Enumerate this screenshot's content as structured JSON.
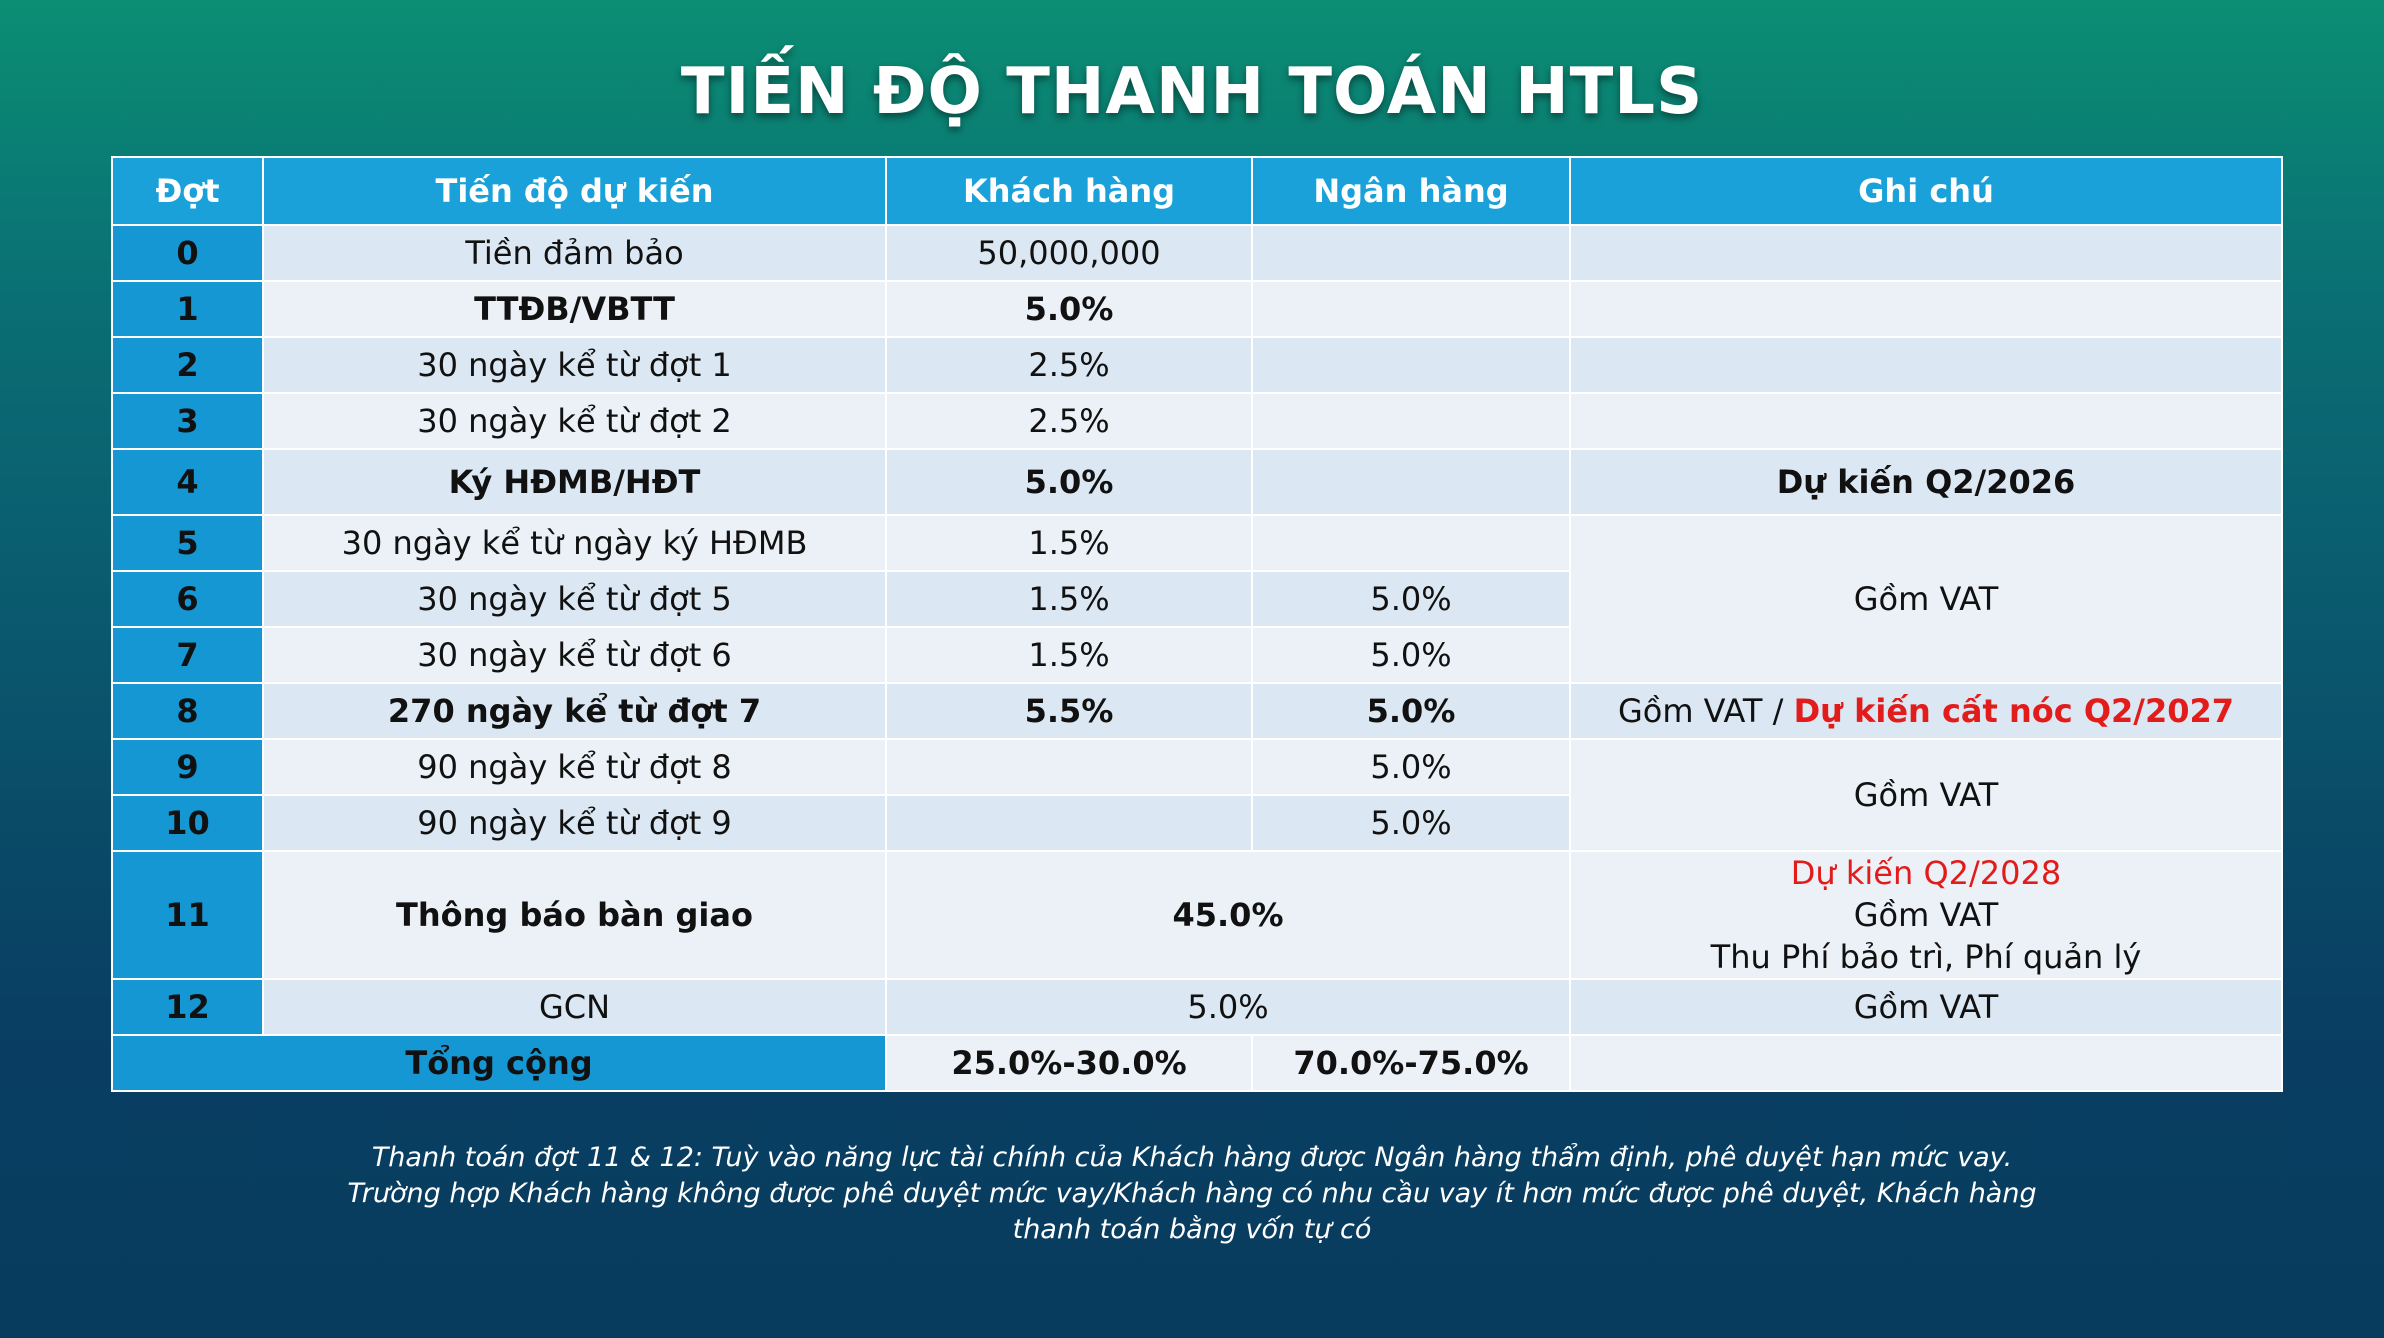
{
  "title": "TIẾN ĐỘ THANH TOÁN HTLS",
  "headers": {
    "dot": "Đợt",
    "tien_do": "Tiến độ dự kiến",
    "khach_hang": "Khách hàng",
    "ngan_hang": "Ngân hàng",
    "ghi_chu": "Ghi chú"
  },
  "rows": [
    {
      "dot": "0",
      "tien_do": "Tiền đảm bảo",
      "kh": "50,000,000"
    },
    {
      "dot": "1",
      "tien_do": "TTĐB/VBTT",
      "kh": "5.0%"
    },
    {
      "dot": "2",
      "tien_do": "30 ngày kể từ đợt 1",
      "kh": "2.5%"
    },
    {
      "dot": "3",
      "tien_do": "30 ngày kể từ đợt 2",
      "kh": "2.5%"
    },
    {
      "dot": "4",
      "tien_do": "Ký HĐMB/HĐT",
      "kh": "5.0%",
      "gc": "Dự kiến Q2/2026"
    },
    {
      "dot": "5",
      "tien_do": "30 ngày kể từ ngày ký HĐMB",
      "kh": "1.5%"
    },
    {
      "dot": "6",
      "tien_do": "30 ngày kể từ đợt 5",
      "kh": "1.5%",
      "nh": "5.0%"
    },
    {
      "dot": "7",
      "tien_do": "30 ngày kể từ đợt 6",
      "kh": "1.5%",
      "nh": "5.0%"
    },
    {
      "dot": "8",
      "tien_do": "270 ngày kể từ đợt 7",
      "kh": "5.5%",
      "nh": "5.0%",
      "gc_a": "Gồm VAT / ",
      "gc_b": "Dự kiến cất nóc Q2/2027"
    },
    {
      "dot": "9",
      "tien_do": "90 ngày kể từ đợt 8",
      "nh": "5.0%"
    },
    {
      "dot": "10",
      "tien_do": "90 ngày kể từ đợt 9",
      "nh": "5.0%"
    },
    {
      "dot": "11",
      "tien_do": "Thông báo bàn giao",
      "combined": "45.0%",
      "gc_l1": "Dự kiến Q2/2028",
      "gc_l2": "Gồm VAT",
      "gc_l3": "Thu Phí bảo trì, Phí quản lý"
    },
    {
      "dot": "12",
      "tien_do": "GCN",
      "combined": "5.0%",
      "gc": "Gồm VAT"
    }
  ],
  "merged_notes": {
    "rows_5_7": "Gồm VAT",
    "rows_9_10": "Gồm VAT"
  },
  "total": {
    "label": "Tổng cộng",
    "kh": "25.0%-30.0%",
    "nh": "70.0%-75.0%"
  },
  "footnote": {
    "line1": "Thanh toán đợt 11 & 12: Tuỳ vào năng lực tài chính của Khách hàng được Ngân hàng thẩm định, phê duyệt hạn mức vay.",
    "line2": "Trường hợp Khách hàng không được phê duyệt mức vay/Khách hàng có nhu cầu vay ít hơn mức được phê duyệt, Khách hàng",
    "line3": "thanh toán bằng vốn tự có"
  }
}
